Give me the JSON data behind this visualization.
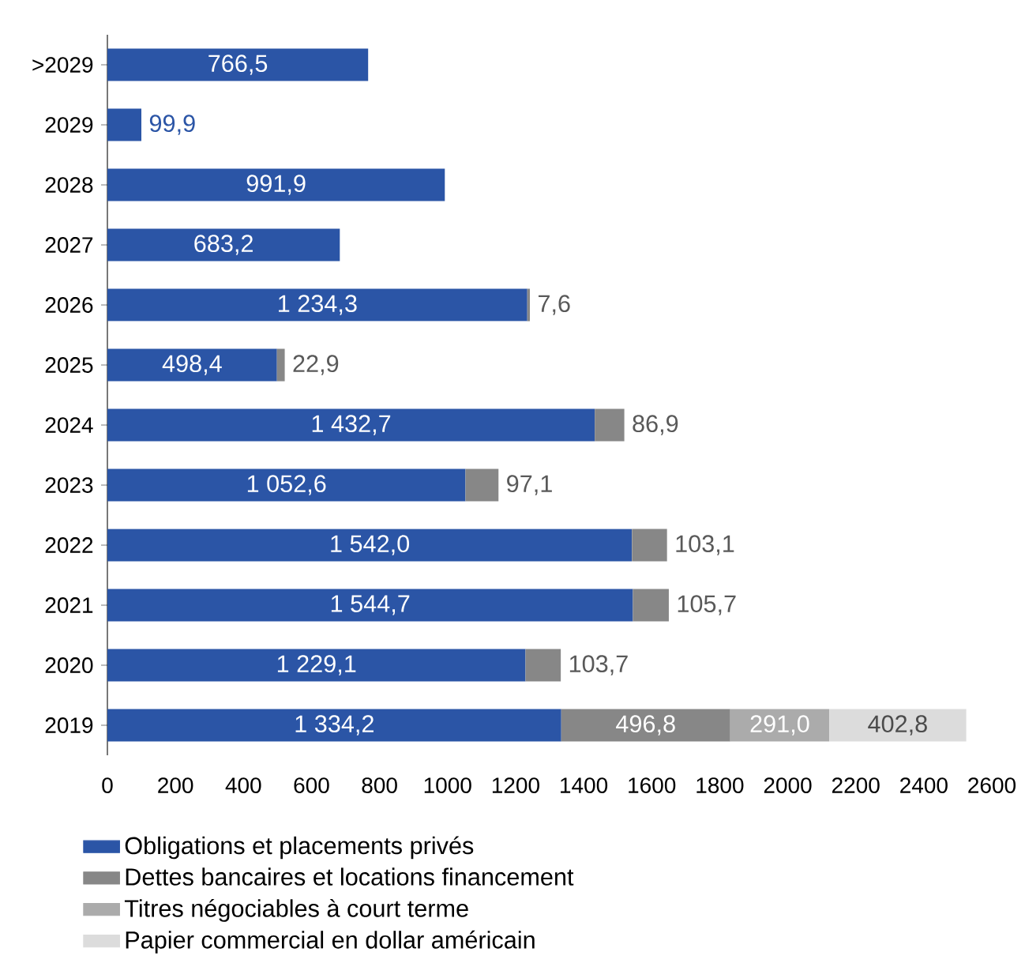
{
  "chart_data": {
    "type": "bar",
    "orientation": "horizontal",
    "stacked": true,
    "categories": [
      ">2029",
      "2029",
      "2028",
      "2027",
      "2026",
      "2025",
      "2024",
      "2023",
      "2022",
      "2021",
      "2020",
      "2019"
    ],
    "series": [
      {
        "name": "Obligations et placements privés",
        "color": "#2b55a6",
        "values": [
          766.5,
          99.9,
          991.9,
          683.2,
          1234.3,
          498.4,
          1432.7,
          1052.6,
          1542.0,
          1544.7,
          1229.1,
          1334.2
        ],
        "value_labels": [
          "766,5",
          "99,9",
          "991,9",
          "683,2",
          "1 234,3",
          "498,4",
          "1 432,7",
          "1 052,6",
          "1 542,0",
          "1 544,7",
          "1 229,1",
          "1 334,2"
        ]
      },
      {
        "name": "Dettes bancaires et locations financement",
        "color": "#878787",
        "values": [
          null,
          null,
          null,
          null,
          7.6,
          22.9,
          86.9,
          97.1,
          103.1,
          105.7,
          103.7,
          496.8
        ],
        "value_labels": [
          null,
          null,
          null,
          null,
          "7,6",
          "22,9",
          "86,9",
          "97,1",
          "103,1",
          "105,7",
          "103,7",
          "496,8"
        ]
      },
      {
        "name": "Titres négociables à court terme",
        "color": "#ababab",
        "values": [
          null,
          null,
          null,
          null,
          null,
          null,
          null,
          null,
          null,
          null,
          null,
          291.0
        ],
        "value_labels": [
          null,
          null,
          null,
          null,
          null,
          null,
          null,
          null,
          null,
          null,
          null,
          "291,0"
        ]
      },
      {
        "name": "Papier commercial en dollar américain",
        "color": "#dcdcdc",
        "values": [
          null,
          null,
          null,
          null,
          null,
          null,
          null,
          null,
          null,
          null,
          null,
          402.8
        ],
        "value_labels": [
          null,
          null,
          null,
          null,
          null,
          null,
          null,
          null,
          null,
          null,
          null,
          "402,8"
        ]
      }
    ],
    "xlim": [
      0,
      2600
    ],
    "xticks": [
      0,
      200,
      400,
      600,
      800,
      1000,
      1200,
      1400,
      1600,
      1800,
      2000,
      2200,
      2400,
      2600
    ],
    "legend": "bottom"
  }
}
